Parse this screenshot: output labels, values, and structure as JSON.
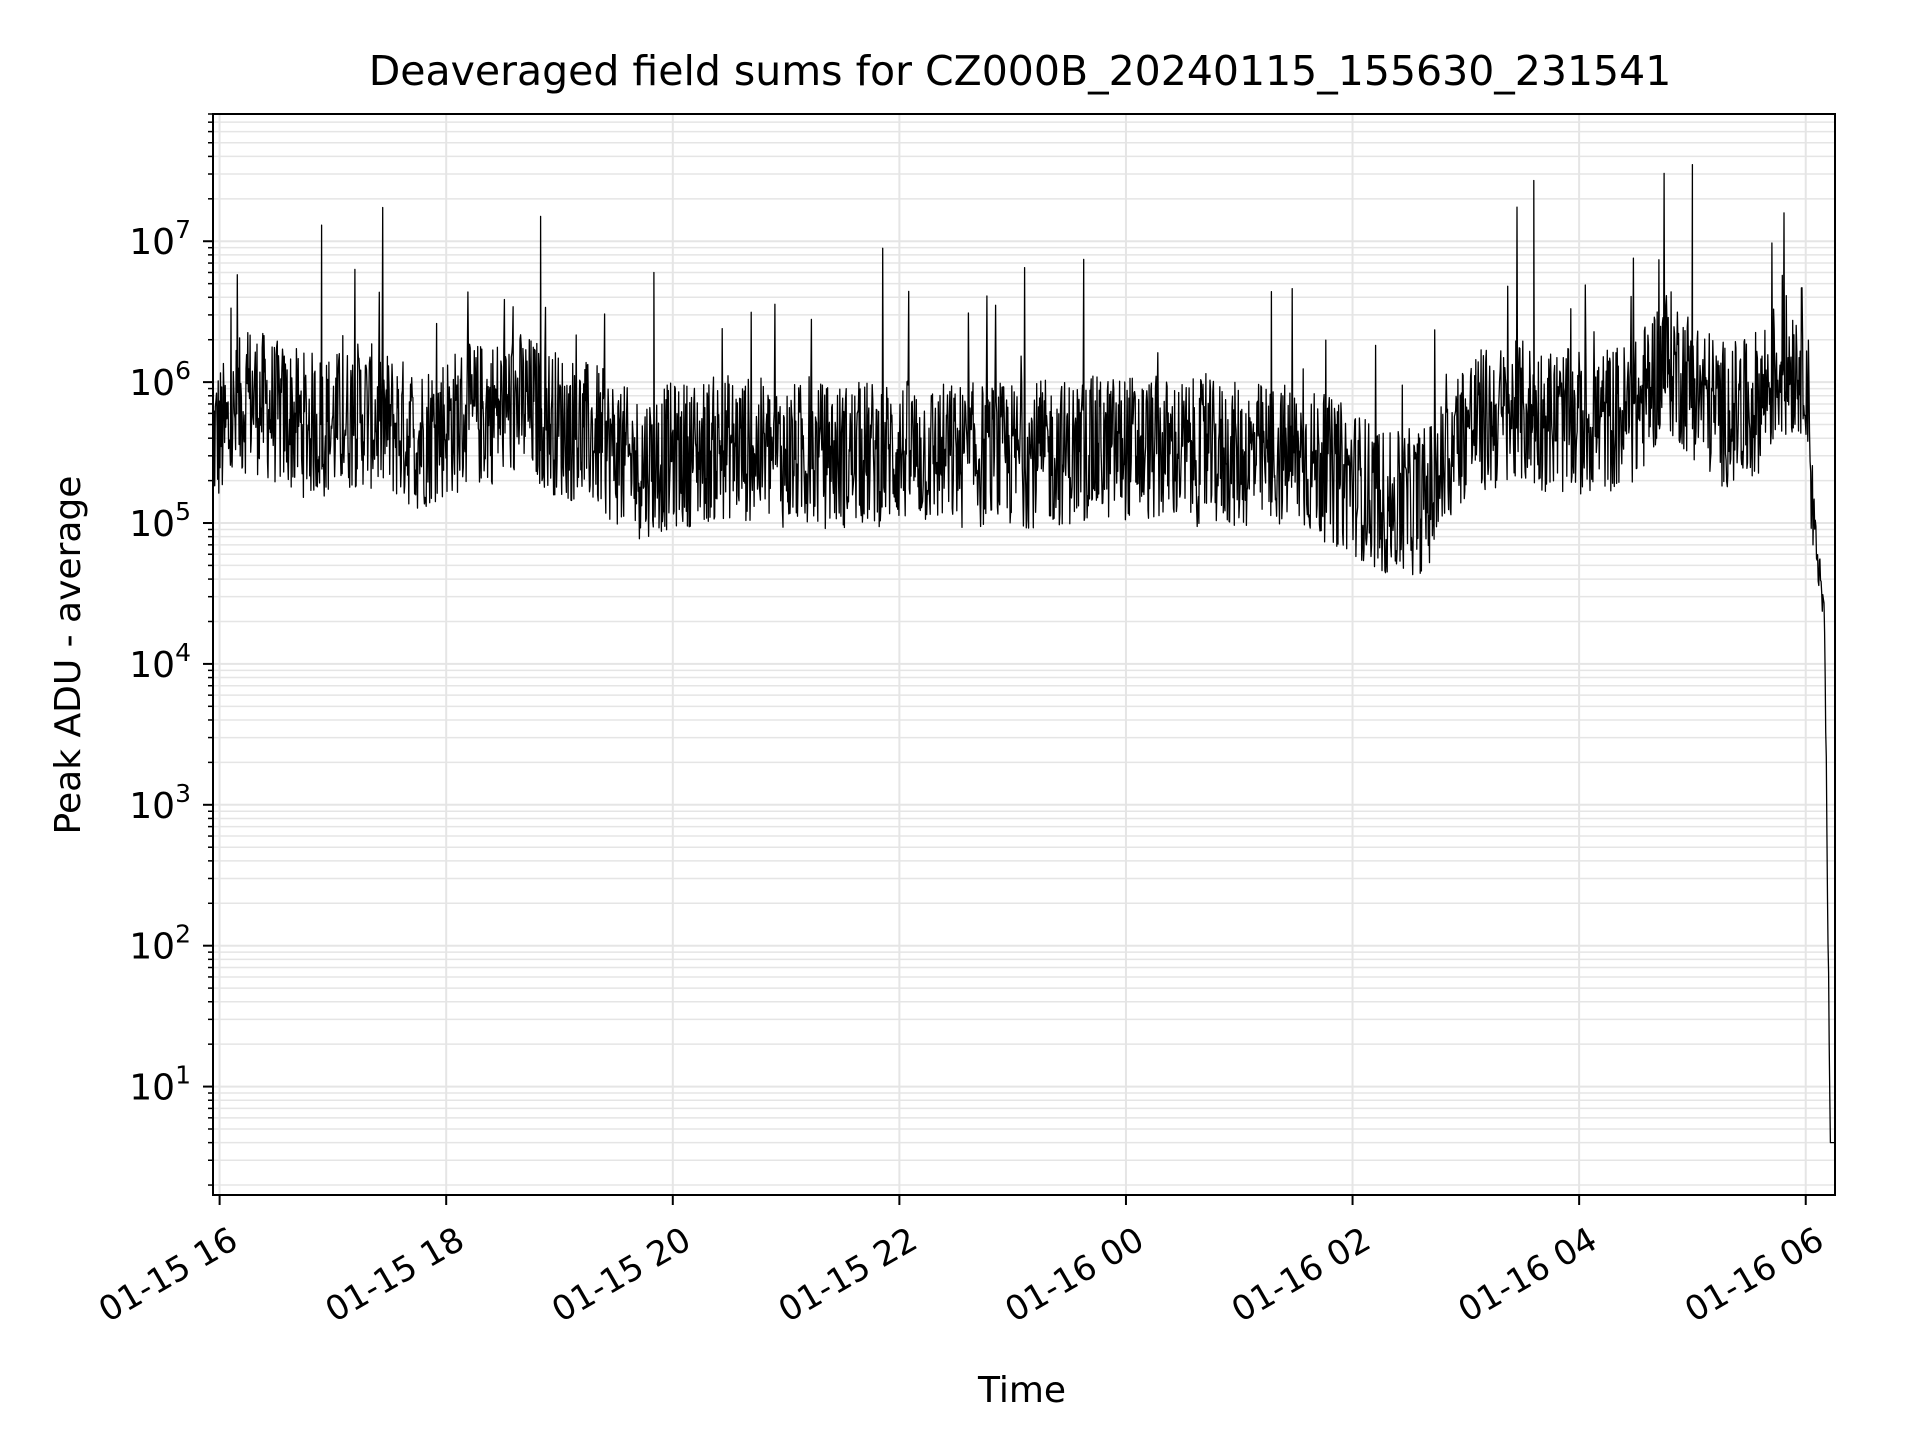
{
  "chart_data": {
    "type": "line",
    "title": "Deaveraged field sums for CZ000B_20240115_155630_231541",
    "xlabel": "Time",
    "ylabel": "Peak ADU - average",
    "yscale": "log",
    "ylim": [
      1.7,
      80000000
    ],
    "xlim": [
      "2024-01-15 15:56:30",
      "2024-01-16 06:15:30"
    ],
    "grid": true,
    "line_color": "#000000",
    "grid_color": "#e5e5e5",
    "x_ticks": [
      {
        "label": "01-15 16",
        "t": "2024-01-15 16:00"
      },
      {
        "label": "01-15 18",
        "t": "2024-01-15 18:00"
      },
      {
        "label": "01-15 20",
        "t": "2024-01-15 20:00"
      },
      {
        "label": "01-15 22",
        "t": "2024-01-15 22:00"
      },
      {
        "label": "01-16 00",
        "t": "2024-01-16 00:00"
      },
      {
        "label": "01-16 02",
        "t": "2024-01-16 02:00"
      },
      {
        "label": "01-16 04",
        "t": "2024-01-16 04:00"
      },
      {
        "label": "01-16 06",
        "t": "2024-01-16 06:00"
      }
    ],
    "y_ticks": [
      {
        "base": "10",
        "exp": "1",
        "value": 10
      },
      {
        "base": "10",
        "exp": "2",
        "value": 100
      },
      {
        "base": "10",
        "exp": "3",
        "value": 1000
      },
      {
        "base": "10",
        "exp": "4",
        "value": 10000
      },
      {
        "base": "10",
        "exp": "5",
        "value": 100000
      },
      {
        "base": "10",
        "exp": "6",
        "value": 1000000
      },
      {
        "base": "10",
        "exp": "7",
        "value": 10000000
      }
    ],
    "series": [
      {
        "x": [
          "2024-01-15 15:56:30",
          "2024-01-15 16:05",
          "2024-01-15 16:15",
          "2024-01-15 16:30",
          "2024-01-15 16:45",
          "2024-01-15 16:54",
          "2024-01-15 17:00",
          "2024-01-15 17:15",
          "2024-01-15 17:30",
          "2024-01-15 17:45",
          "2024-01-15 18:00",
          "2024-01-15 18:20",
          "2024-01-15 18:40",
          "2024-01-15 18:50",
          "2024-01-15 19:00",
          "2024-01-15 19:20",
          "2024-01-15 19:40",
          "2024-01-15 19:50",
          "2024-01-15 20:00",
          "2024-01-15 20:30",
          "2024-01-15 21:00",
          "2024-01-15 21:30",
          "2024-01-15 22:00",
          "2024-01-15 22:30",
          "2024-01-15 23:00",
          "2024-01-15 23:30",
          "2024-01-16 00:00",
          "2024-01-16 00:30",
          "2024-01-16 01:00",
          "2024-01-16 01:30",
          "2024-01-16 02:00",
          "2024-01-16 02:20",
          "2024-01-16 02:40",
          "2024-01-16 03:00",
          "2024-01-16 03:30",
          "2024-01-16 03:36",
          "2024-01-16 04:00",
          "2024-01-16 04:30",
          "2024-01-16 04:45",
          "2024-01-16 05:00",
          "2024-01-16 05:15",
          "2024-01-16 05:30",
          "2024-01-16 05:45",
          "2024-01-16 06:00",
          "2024-01-16 06:05",
          "2024-01-16 06:10",
          "2024-01-16 06:13",
          "2024-01-16 06:15:30"
        ],
        "y": [
          400000,
          450000,
          800000,
          600000,
          500000,
          13000000,
          500000,
          600000,
          500000,
          400000,
          500000,
          600000,
          700000,
          15000000,
          500000,
          400000,
          250000,
          6000000,
          300000,
          350000,
          300000,
          300000,
          320000,
          300000,
          300000,
          320000,
          350000,
          320000,
          300000,
          300000,
          200000,
          130000,
          150000,
          500000,
          600000,
          27000000,
          500000,
          600000,
          1500000,
          35000000,
          600000,
          600000,
          1200000,
          1500000,
          80000,
          20000,
          4,
          4
        ]
      }
    ]
  }
}
